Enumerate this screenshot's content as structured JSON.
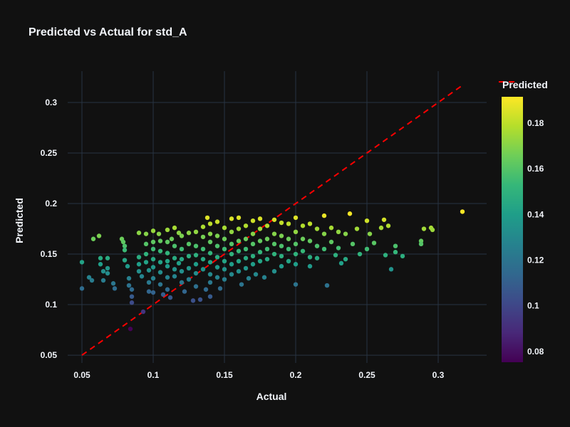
{
  "chart_data": {
    "type": "scatter",
    "title": "Predicted vs Actual for std_A",
    "xlabel": "Actual",
    "ylabel": "Predicted",
    "xlim": [
      0.04,
      0.334
    ],
    "ylim": [
      0.0423,
      0.331
    ],
    "x_ticks": [
      0.05,
      0.1,
      0.15,
      0.2,
      0.25,
      0.3
    ],
    "x_tick_labels": [
      "0.05",
      "0.1",
      "0.15",
      "0.2",
      "0.25",
      "0.3"
    ],
    "y_ticks": [
      0.05,
      0.1,
      0.15,
      0.2,
      0.25,
      0.3
    ],
    "y_tick_labels": [
      "0.05",
      "0.1",
      "0.15",
      "0.2",
      "0.25",
      "0.3"
    ],
    "grid": true,
    "background": "#111111",
    "grid_color": "#283442",
    "colorbar": {
      "title": "Predicted",
      "colorscale": "viridis",
      "range": [
        0.0753,
        0.1915
      ],
      "ticks": [
        0.08,
        0.1,
        0.12,
        0.14,
        0.16,
        0.18
      ],
      "tick_labels": [
        "0.08",
        "0.1",
        "0.12",
        "0.14",
        "0.16",
        "0.18"
      ]
    },
    "reference_line": {
      "style": "dashed",
      "color": "#ff0000",
      "x": [
        0.05,
        0.3175
      ],
      "y": [
        0.05,
        0.3175
      ]
    },
    "legend_placement": "top-right",
    "points": [
      [
        0.05,
        0.142
      ],
      [
        0.05,
        0.116
      ],
      [
        0.055,
        0.127
      ],
      [
        0.057,
        0.124
      ],
      [
        0.058,
        0.165
      ],
      [
        0.062,
        0.168
      ],
      [
        0.063,
        0.146
      ],
      [
        0.063,
        0.14
      ],
      [
        0.065,
        0.133
      ],
      [
        0.065,
        0.124
      ],
      [
        0.068,
        0.146
      ],
      [
        0.068,
        0.136
      ],
      [
        0.068,
        0.131
      ],
      [
        0.072,
        0.121
      ],
      [
        0.073,
        0.116
      ],
      [
        0.078,
        0.165
      ],
      [
        0.079,
        0.162
      ],
      [
        0.08,
        0.158
      ],
      [
        0.08,
        0.154
      ],
      [
        0.08,
        0.144
      ],
      [
        0.082,
        0.138
      ],
      [
        0.083,
        0.126
      ],
      [
        0.083,
        0.119
      ],
      [
        0.084,
        0.076
      ],
      [
        0.085,
        0.115
      ],
      [
        0.085,
        0.108
      ],
      [
        0.085,
        0.102
      ],
      [
        0.09,
        0.171
      ],
      [
        0.09,
        0.147
      ],
      [
        0.09,
        0.14
      ],
      [
        0.09,
        0.133
      ],
      [
        0.092,
        0.128
      ],
      [
        0.093,
        0.093
      ],
      [
        0.095,
        0.17
      ],
      [
        0.095,
        0.16
      ],
      [
        0.095,
        0.15
      ],
      [
        0.095,
        0.142
      ],
      [
        0.097,
        0.134
      ],
      [
        0.097,
        0.122
      ],
      [
        0.097,
        0.113
      ],
      [
        0.1,
        0.173
      ],
      [
        0.1,
        0.162
      ],
      [
        0.1,
        0.155
      ],
      [
        0.1,
        0.145
      ],
      [
        0.1,
        0.137
      ],
      [
        0.1,
        0.126
      ],
      [
        0.1,
        0.112
      ],
      [
        0.104,
        0.17
      ],
      [
        0.105,
        0.163
      ],
      [
        0.105,
        0.153
      ],
      [
        0.105,
        0.142
      ],
      [
        0.105,
        0.132
      ],
      [
        0.105,
        0.12
      ],
      [
        0.107,
        0.11
      ],
      [
        0.11,
        0.174
      ],
      [
        0.11,
        0.162
      ],
      [
        0.11,
        0.151
      ],
      [
        0.11,
        0.143
      ],
      [
        0.11,
        0.138
      ],
      [
        0.11,
        0.127
      ],
      [
        0.11,
        0.115
      ],
      [
        0.112,
        0.107
      ],
      [
        0.113,
        0.165
      ],
      [
        0.115,
        0.176
      ],
      [
        0.115,
        0.158
      ],
      [
        0.115,
        0.146
      ],
      [
        0.115,
        0.135
      ],
      [
        0.115,
        0.128
      ],
      [
        0.118,
        0.171
      ],
      [
        0.118,
        0.141
      ],
      [
        0.12,
        0.168
      ],
      [
        0.12,
        0.155
      ],
      [
        0.12,
        0.145
      ],
      [
        0.12,
        0.133
      ],
      [
        0.12,
        0.122
      ],
      [
        0.122,
        0.113
      ],
      [
        0.125,
        0.171
      ],
      [
        0.125,
        0.16
      ],
      [
        0.125,
        0.148
      ],
      [
        0.125,
        0.136
      ],
      [
        0.125,
        0.125
      ],
      [
        0.128,
        0.104
      ],
      [
        0.13,
        0.172
      ],
      [
        0.13,
        0.158
      ],
      [
        0.13,
        0.149
      ],
      [
        0.13,
        0.14
      ],
      [
        0.13,
        0.131
      ],
      [
        0.13,
        0.118
      ],
      [
        0.133,
        0.105
      ],
      [
        0.135,
        0.177
      ],
      [
        0.135,
        0.167
      ],
      [
        0.135,
        0.155
      ],
      [
        0.135,
        0.145
      ],
      [
        0.135,
        0.135
      ],
      [
        0.137,
        0.115
      ],
      [
        0.138,
        0.186
      ],
      [
        0.14,
        0.18
      ],
      [
        0.14,
        0.17
      ],
      [
        0.14,
        0.162
      ],
      [
        0.14,
        0.151
      ],
      [
        0.14,
        0.142
      ],
      [
        0.14,
        0.13
      ],
      [
        0.14,
        0.122
      ],
      [
        0.14,
        0.108
      ],
      [
        0.145,
        0.182
      ],
      [
        0.145,
        0.168
      ],
      [
        0.145,
        0.158
      ],
      [
        0.145,
        0.147
      ],
      [
        0.145,
        0.137
      ],
      [
        0.145,
        0.127
      ],
      [
        0.147,
        0.116
      ],
      [
        0.15,
        0.176
      ],
      [
        0.15,
        0.165
      ],
      [
        0.15,
        0.155
      ],
      [
        0.15,
        0.143
      ],
      [
        0.15,
        0.135
      ],
      [
        0.15,
        0.125
      ],
      [
        0.155,
        0.185
      ],
      [
        0.155,
        0.172
      ],
      [
        0.155,
        0.16
      ],
      [
        0.155,
        0.15
      ],
      [
        0.155,
        0.14
      ],
      [
        0.155,
        0.13
      ],
      [
        0.16,
        0.186
      ],
      [
        0.16,
        0.175
      ],
      [
        0.16,
        0.163
      ],
      [
        0.16,
        0.153
      ],
      [
        0.16,
        0.143
      ],
      [
        0.16,
        0.133
      ],
      [
        0.162,
        0.12
      ],
      [
        0.165,
        0.178
      ],
      [
        0.165,
        0.165
      ],
      [
        0.165,
        0.155
      ],
      [
        0.165,
        0.146
      ],
      [
        0.165,
        0.136
      ],
      [
        0.167,
        0.126
      ],
      [
        0.17,
        0.183
      ],
      [
        0.17,
        0.17
      ],
      [
        0.17,
        0.16
      ],
      [
        0.17,
        0.148
      ],
      [
        0.17,
        0.14
      ],
      [
        0.172,
        0.13
      ],
      [
        0.175,
        0.185
      ],
      [
        0.175,
        0.175
      ],
      [
        0.175,
        0.163
      ],
      [
        0.175,
        0.152
      ],
      [
        0.175,
        0.143
      ],
      [
        0.178,
        0.127
      ],
      [
        0.18,
        0.178
      ],
      [
        0.18,
        0.165
      ],
      [
        0.18,
        0.155
      ],
      [
        0.18,
        0.145
      ],
      [
        0.185,
        0.184
      ],
      [
        0.185,
        0.17
      ],
      [
        0.185,
        0.16
      ],
      [
        0.185,
        0.15
      ],
      [
        0.185,
        0.133
      ],
      [
        0.19,
        0.181
      ],
      [
        0.19,
        0.168
      ],
      [
        0.19,
        0.158
      ],
      [
        0.19,
        0.148
      ],
      [
        0.19,
        0.138
      ],
      [
        0.195,
        0.18
      ],
      [
        0.195,
        0.165
      ],
      [
        0.195,
        0.155
      ],
      [
        0.195,
        0.143
      ],
      [
        0.2,
        0.186
      ],
      [
        0.2,
        0.172
      ],
      [
        0.2,
        0.16
      ],
      [
        0.2,
        0.15
      ],
      [
        0.2,
        0.14
      ],
      [
        0.2,
        0.12
      ],
      [
        0.205,
        0.178
      ],
      [
        0.205,
        0.165
      ],
      [
        0.205,
        0.153
      ],
      [
        0.21,
        0.18
      ],
      [
        0.21,
        0.163
      ],
      [
        0.21,
        0.147
      ],
      [
        0.21,
        0.138
      ],
      [
        0.215,
        0.175
      ],
      [
        0.215,
        0.158
      ],
      [
        0.215,
        0.146
      ],
      [
        0.22,
        0.188
      ],
      [
        0.22,
        0.17
      ],
      [
        0.22,
        0.155
      ],
      [
        0.222,
        0.119
      ],
      [
        0.225,
        0.176
      ],
      [
        0.225,
        0.162
      ],
      [
        0.228,
        0.149
      ],
      [
        0.23,
        0.172
      ],
      [
        0.23,
        0.156
      ],
      [
        0.232,
        0.141
      ],
      [
        0.235,
        0.17
      ],
      [
        0.235,
        0.145
      ],
      [
        0.238,
        0.19
      ],
      [
        0.24,
        0.16
      ],
      [
        0.243,
        0.175
      ],
      [
        0.245,
        0.15
      ],
      [
        0.25,
        0.155
      ],
      [
        0.25,
        0.183
      ],
      [
        0.252,
        0.17
      ],
      [
        0.255,
        0.161
      ],
      [
        0.26,
        0.176
      ],
      [
        0.262,
        0.184
      ],
      [
        0.263,
        0.149
      ],
      [
        0.265,
        0.178
      ],
      [
        0.267,
        0.135
      ],
      [
        0.27,
        0.158
      ],
      [
        0.27,
        0.152
      ],
      [
        0.275,
        0.148
      ],
      [
        0.288,
        0.163
      ],
      [
        0.288,
        0.16
      ],
      [
        0.29,
        0.175
      ],
      [
        0.295,
        0.176
      ],
      [
        0.296,
        0.174
      ],
      [
        0.317,
        0.192
      ]
    ]
  }
}
